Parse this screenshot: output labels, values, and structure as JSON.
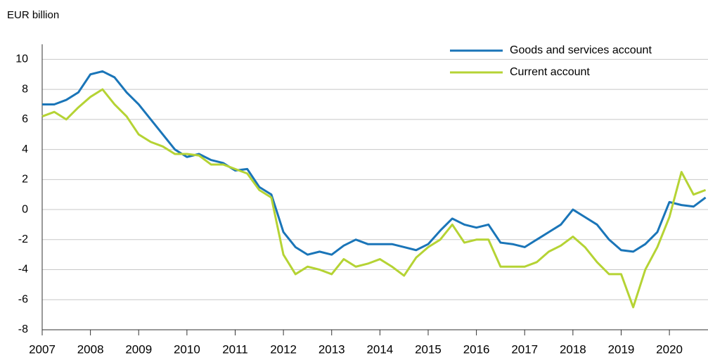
{
  "chart_data": {
    "type": "line",
    "ylabel": "EUR billion",
    "x": [
      2007,
      2007.25,
      2007.5,
      2007.75,
      2008,
      2008.25,
      2008.5,
      2008.75,
      2009,
      2009.25,
      2009.5,
      2009.75,
      2010,
      2010.25,
      2010.5,
      2010.75,
      2011,
      2011.25,
      2011.5,
      2011.75,
      2012,
      2012.25,
      2012.5,
      2012.75,
      2013,
      2013.25,
      2013.5,
      2013.75,
      2014,
      2014.25,
      2014.5,
      2014.75,
      2015,
      2015.25,
      2015.5,
      2015.75,
      2016,
      2016.25,
      2016.5,
      2016.75,
      2017,
      2017.25,
      2017.5,
      2017.75,
      2018,
      2018.25,
      2018.5,
      2018.75,
      2019,
      2019.25,
      2019.5,
      2019.75,
      2020,
      2020.25,
      2020.5,
      2020.75
    ],
    "series": [
      {
        "name": "Goods and services account",
        "color": "#1a75b8",
        "values": [
          7.0,
          7.0,
          7.3,
          7.8,
          9.0,
          9.2,
          8.8,
          7.8,
          7.0,
          6.0,
          5.0,
          4.0,
          3.5,
          3.7,
          3.3,
          3.1,
          2.6,
          2.7,
          1.5,
          1.0,
          -1.5,
          -2.5,
          -3.0,
          -2.8,
          -3.0,
          -2.4,
          -2.0,
          -2.3,
          -2.3,
          -2.3,
          -2.5,
          -2.7,
          -2.3,
          -1.4,
          -0.6,
          -1.0,
          -1.2,
          -1.0,
          -2.2,
          -2.3,
          -2.5,
          -2.0,
          -1.5,
          -1.0,
          0.0,
          -0.5,
          -1.0,
          -2.0,
          -2.7,
          -2.8,
          -2.3,
          -1.5,
          0.5,
          0.3,
          0.2,
          0.8
        ]
      },
      {
        "name": "Current account",
        "color": "#b5d334",
        "values": [
          6.2,
          6.5,
          6.0,
          6.8,
          7.5,
          8.0,
          7.0,
          6.2,
          5.0,
          4.5,
          4.2,
          3.7,
          3.7,
          3.6,
          3.0,
          3.0,
          2.7,
          2.4,
          1.3,
          0.8,
          -3.0,
          -4.3,
          -3.8,
          -4.0,
          -4.3,
          -3.3,
          -3.8,
          -3.6,
          -3.3,
          -3.8,
          -4.4,
          -3.2,
          -2.5,
          -2.0,
          -1.0,
          -2.2,
          -2.0,
          -2.0,
          -3.8,
          -3.8,
          -3.8,
          -3.5,
          -2.8,
          -2.4,
          -1.8,
          -2.5,
          -3.5,
          -4.3,
          -4.3,
          -6.5,
          -4.0,
          -2.5,
          -0.5,
          2.5,
          1.0,
          1.3
        ]
      }
    ],
    "xlim": [
      2007,
      2020.8
    ],
    "xticks": [
      2007,
      2008,
      2009,
      2010,
      2011,
      2012,
      2013,
      2014,
      2015,
      2016,
      2017,
      2018,
      2019,
      2020
    ],
    "ylim": [
      -8,
      11
    ],
    "yticks": [
      -8,
      -6,
      -4,
      -2,
      0,
      2,
      4,
      6,
      8,
      10
    ],
    "grid": true,
    "legend": "upper right"
  }
}
